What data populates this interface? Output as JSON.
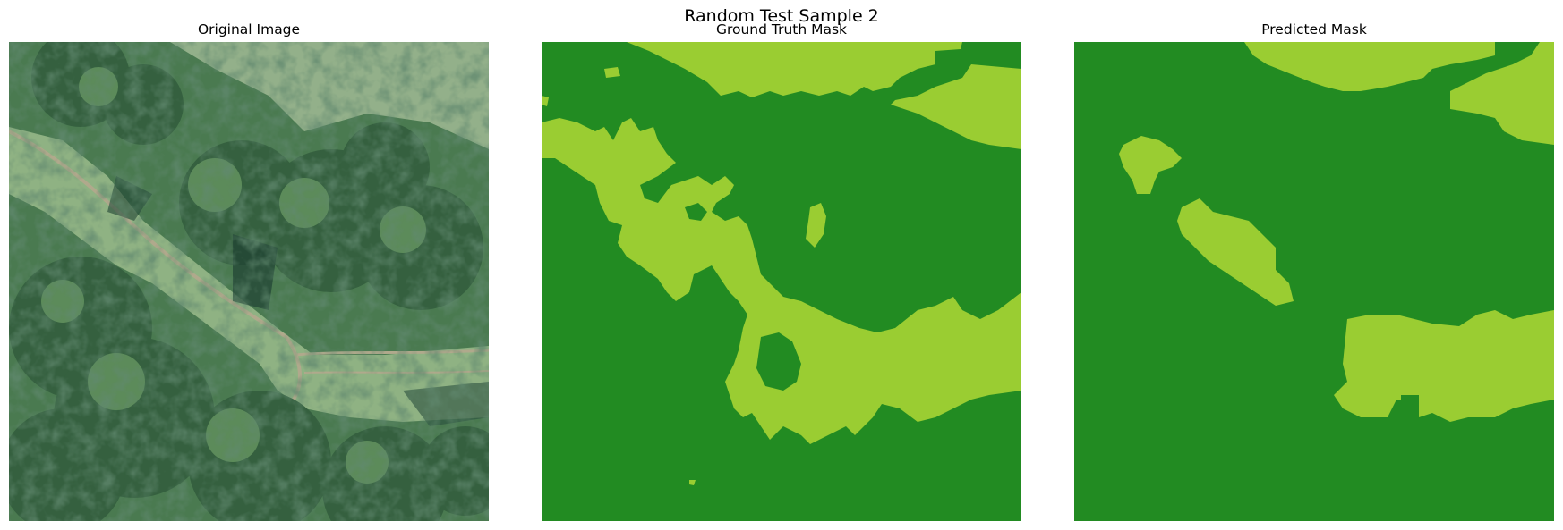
{
  "figure": {
    "title": "Random Test Sample 2"
  },
  "panels": [
    {
      "title": "Original Image"
    },
    {
      "title": "Ground Truth Mask"
    },
    {
      "title": "Predicted Mask"
    }
  ],
  "colors": {
    "mask_background": "#228b22",
    "mask_foreground": "#9acd32",
    "photo_canopy_dark": "#2f5a3c",
    "photo_canopy_mid": "#4c7a4e",
    "photo_grass": "#8fb283",
    "photo_path": "#a9a58a"
  }
}
